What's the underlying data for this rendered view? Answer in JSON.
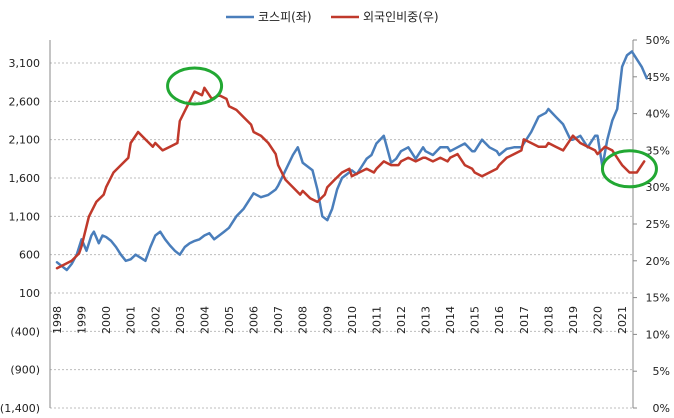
{
  "chart_data": {
    "type": "line",
    "title": "",
    "legend": {
      "placement": "top-center"
    },
    "grid": {
      "horizontal": true,
      "vertical": false,
      "style": "dashed"
    },
    "y_left": {
      "ticks": [
        3100,
        2600,
        2100,
        1600,
        1100,
        600,
        100,
        -400,
        -900,
        -1400
      ],
      "tick_labels": [
        "3,100",
        "2,600",
        "2,100",
        "1,600",
        "1,100",
        "600",
        "100",
        "(400)",
        "(900)",
        "(1,400)"
      ],
      "range": [
        -1400,
        3400
      ]
    },
    "y_right": {
      "ticks": [
        50,
        45,
        40,
        35,
        30,
        25,
        20,
        15,
        10,
        5,
        0
      ],
      "tick_labels": [
        "50%",
        "45%",
        "40%",
        "35%",
        "30%",
        "25%",
        "20%",
        "15%",
        "10%",
        "5%",
        "0%"
      ],
      "range": [
        0,
        50
      ]
    },
    "x": {
      "range": [
        1998.0,
        2021.2
      ],
      "tick_labels": [
        "1998",
        "1999",
        "2000",
        "2001",
        "2002",
        "2003",
        "2004",
        "2005",
        "2006",
        "2007",
        "2008",
        "2009",
        "2010",
        "2011",
        "2012",
        "2013",
        "2014",
        "2015",
        "2016",
        "2017",
        "2018",
        "2019",
        "2020",
        "2021"
      ]
    },
    "series": [
      {
        "name": "코스피(좌)",
        "axis": "left",
        "color": "#4a7ebb",
        "points": [
          [
            1998.0,
            500
          ],
          [
            1998.2,
            450
          ],
          [
            1998.4,
            400
          ],
          [
            1998.6,
            480
          ],
          [
            1998.8,
            600
          ],
          [
            1999.0,
            800
          ],
          [
            1999.2,
            650
          ],
          [
            1999.4,
            850
          ],
          [
            1999.5,
            900
          ],
          [
            1999.7,
            750
          ],
          [
            1999.85,
            850
          ],
          [
            2000.0,
            830
          ],
          [
            2000.2,
            780
          ],
          [
            2000.4,
            700
          ],
          [
            2000.6,
            600
          ],
          [
            2000.8,
            520
          ],
          [
            2001.0,
            540
          ],
          [
            2001.2,
            600
          ],
          [
            2001.4,
            560
          ],
          [
            2001.6,
            520
          ],
          [
            2001.8,
            700
          ],
          [
            2002.0,
            850
          ],
          [
            2002.2,
            900
          ],
          [
            2002.4,
            800
          ],
          [
            2002.6,
            720
          ],
          [
            2002.8,
            650
          ],
          [
            2003.0,
            600
          ],
          [
            2003.2,
            700
          ],
          [
            2003.4,
            750
          ],
          [
            2003.6,
            780
          ],
          [
            2003.8,
            800
          ],
          [
            2004.0,
            850
          ],
          [
            2004.2,
            880
          ],
          [
            2004.4,
            800
          ],
          [
            2004.6,
            850
          ],
          [
            2004.8,
            900
          ],
          [
            2005.0,
            950
          ],
          [
            2005.3,
            1100
          ],
          [
            2005.6,
            1200
          ],
          [
            2005.9,
            1350
          ],
          [
            2006.0,
            1400
          ],
          [
            2006.3,
            1350
          ],
          [
            2006.6,
            1380
          ],
          [
            2006.9,
            1450
          ],
          [
            2007.0,
            1500
          ],
          [
            2007.3,
            1700
          ],
          [
            2007.6,
            1900
          ],
          [
            2007.8,
            2000
          ],
          [
            2008.0,
            1800
          ],
          [
            2008.2,
            1750
          ],
          [
            2008.4,
            1700
          ],
          [
            2008.6,
            1450
          ],
          [
            2008.8,
            1100
          ],
          [
            2009.0,
            1050
          ],
          [
            2009.2,
            1200
          ],
          [
            2009.4,
            1450
          ],
          [
            2009.6,
            1600
          ],
          [
            2009.8,
            1650
          ],
          [
            2010.0,
            1700
          ],
          [
            2010.2,
            1650
          ],
          [
            2010.4,
            1750
          ],
          [
            2010.6,
            1850
          ],
          [
            2010.8,
            1900
          ],
          [
            2011.0,
            2050
          ],
          [
            2011.3,
            2150
          ],
          [
            2011.6,
            1800
          ],
          [
            2011.8,
            1850
          ],
          [
            2012.0,
            1950
          ],
          [
            2012.3,
            2000
          ],
          [
            2012.6,
            1850
          ],
          [
            2012.9,
            2000
          ],
          [
            2013.0,
            1950
          ],
          [
            2013.3,
            1900
          ],
          [
            2013.6,
            2000
          ],
          [
            2013.9,
            2000
          ],
          [
            2014.0,
            1950
          ],
          [
            2014.3,
            2000
          ],
          [
            2014.6,
            2050
          ],
          [
            2014.9,
            1950
          ],
          [
            2015.0,
            1950
          ],
          [
            2015.3,
            2100
          ],
          [
            2015.6,
            2000
          ],
          [
            2015.9,
            1950
          ],
          [
            2016.0,
            1900
          ],
          [
            2016.3,
            1980
          ],
          [
            2016.6,
            2000
          ],
          [
            2016.9,
            2000
          ],
          [
            2017.0,
            2050
          ],
          [
            2017.3,
            2200
          ],
          [
            2017.6,
            2400
          ],
          [
            2017.9,
            2450
          ],
          [
            2018.0,
            2500
          ],
          [
            2018.3,
            2400
          ],
          [
            2018.6,
            2300
          ],
          [
            2018.9,
            2100
          ],
          [
            2019.0,
            2100
          ],
          [
            2019.3,
            2150
          ],
          [
            2019.6,
            2000
          ],
          [
            2019.9,
            2150
          ],
          [
            2020.0,
            2150
          ],
          [
            2020.2,
            1750
          ],
          [
            2020.4,
            2100
          ],
          [
            2020.6,
            2350
          ],
          [
            2020.8,
            2500
          ],
          [
            2021.0,
            3050
          ],
          [
            2021.2,
            3200
          ],
          [
            2021.4,
            3250
          ],
          [
            2021.6,
            3150
          ],
          [
            2021.8,
            3050
          ],
          [
            2022.0,
            2900
          ]
        ]
      },
      {
        "name": "외국인비중(우)",
        "axis": "right",
        "color": "#c0392b",
        "points": [
          [
            1998.0,
            19.0
          ],
          [
            1998.3,
            19.5
          ],
          [
            1998.6,
            20.0
          ],
          [
            1998.9,
            21.0
          ],
          [
            1999.0,
            22.0
          ],
          [
            1999.3,
            26.0
          ],
          [
            1999.6,
            28.0
          ],
          [
            1999.9,
            29.0
          ],
          [
            2000.0,
            30.0
          ],
          [
            2000.3,
            32.0
          ],
          [
            2000.6,
            33.0
          ],
          [
            2000.9,
            34.0
          ],
          [
            2001.0,
            36.0
          ],
          [
            2001.3,
            37.5
          ],
          [
            2001.6,
            36.5
          ],
          [
            2001.9,
            35.5
          ],
          [
            2002.0,
            36.0
          ],
          [
            2002.3,
            35.0
          ],
          [
            2002.6,
            35.5
          ],
          [
            2002.9,
            36.0
          ],
          [
            2003.0,
            39.0
          ],
          [
            2003.3,
            41.0
          ],
          [
            2003.6,
            43.0
          ],
          [
            2003.9,
            42.5
          ],
          [
            2004.0,
            43.5
          ],
          [
            2004.3,
            42.0
          ],
          [
            2004.6,
            42.5
          ],
          [
            2004.9,
            42.0
          ],
          [
            2005.0,
            41.0
          ],
          [
            2005.3,
            40.5
          ],
          [
            2005.6,
            39.5
          ],
          [
            2005.9,
            38.5
          ],
          [
            2006.0,
            37.5
          ],
          [
            2006.3,
            37.0
          ],
          [
            2006.6,
            36.0
          ],
          [
            2006.9,
            34.5
          ],
          [
            2007.0,
            33.0
          ],
          [
            2007.3,
            31.0
          ],
          [
            2007.6,
            30.0
          ],
          [
            2007.9,
            29.0
          ],
          [
            2008.0,
            29.5
          ],
          [
            2008.3,
            28.5
          ],
          [
            2008.6,
            28.0
          ],
          [
            2008.9,
            29.0
          ],
          [
            2009.0,
            30.0
          ],
          [
            2009.3,
            31.0
          ],
          [
            2009.6,
            32.0
          ],
          [
            2009.9,
            32.5
          ],
          [
            2010.0,
            31.5
          ],
          [
            2010.3,
            32.0
          ],
          [
            2010.6,
            32.5
          ],
          [
            2010.9,
            32.0
          ],
          [
            2011.0,
            32.5
          ],
          [
            2011.3,
            33.5
          ],
          [
            2011.6,
            33.0
          ],
          [
            2011.9,
            33.0
          ],
          [
            2012.0,
            33.5
          ],
          [
            2012.3,
            34.0
          ],
          [
            2012.6,
            33.5
          ],
          [
            2012.9,
            34.0
          ],
          [
            2013.0,
            34.0
          ],
          [
            2013.3,
            33.5
          ],
          [
            2013.6,
            34.0
          ],
          [
            2013.9,
            33.5
          ],
          [
            2014.0,
            34.0
          ],
          [
            2014.3,
            34.5
          ],
          [
            2014.6,
            33.0
          ],
          [
            2014.9,
            32.5
          ],
          [
            2015.0,
            32.0
          ],
          [
            2015.3,
            31.5
          ],
          [
            2015.6,
            32.0
          ],
          [
            2015.9,
            32.5
          ],
          [
            2016.0,
            33.0
          ],
          [
            2016.3,
            34.0
          ],
          [
            2016.6,
            34.5
          ],
          [
            2016.9,
            35.0
          ],
          [
            2017.0,
            36.5
          ],
          [
            2017.3,
            36.0
          ],
          [
            2017.6,
            35.5
          ],
          [
            2017.9,
            35.5
          ],
          [
            2018.0,
            36.0
          ],
          [
            2018.3,
            35.5
          ],
          [
            2018.6,
            35.0
          ],
          [
            2018.9,
            36.5
          ],
          [
            2019.0,
            37.0
          ],
          [
            2019.3,
            36.0
          ],
          [
            2019.6,
            35.5
          ],
          [
            2019.9,
            35.0
          ],
          [
            2020.0,
            34.5
          ],
          [
            2020.3,
            35.5
          ],
          [
            2020.6,
            35.0
          ],
          [
            2020.9,
            33.5
          ],
          [
            2021.0,
            33.0
          ],
          [
            2021.3,
            32.0
          ],
          [
            2021.6,
            32.0
          ],
          [
            2021.9,
            33.5
          ]
        ]
      }
    ],
    "annotations": [
      {
        "type": "ellipse",
        "color": "#22a833",
        "at_x": 2003.6,
        "at_y_left": 2800
      },
      {
        "type": "ellipse",
        "color": "#22a833",
        "at_x": 2021.3,
        "at_y_left": 1720
      }
    ]
  }
}
